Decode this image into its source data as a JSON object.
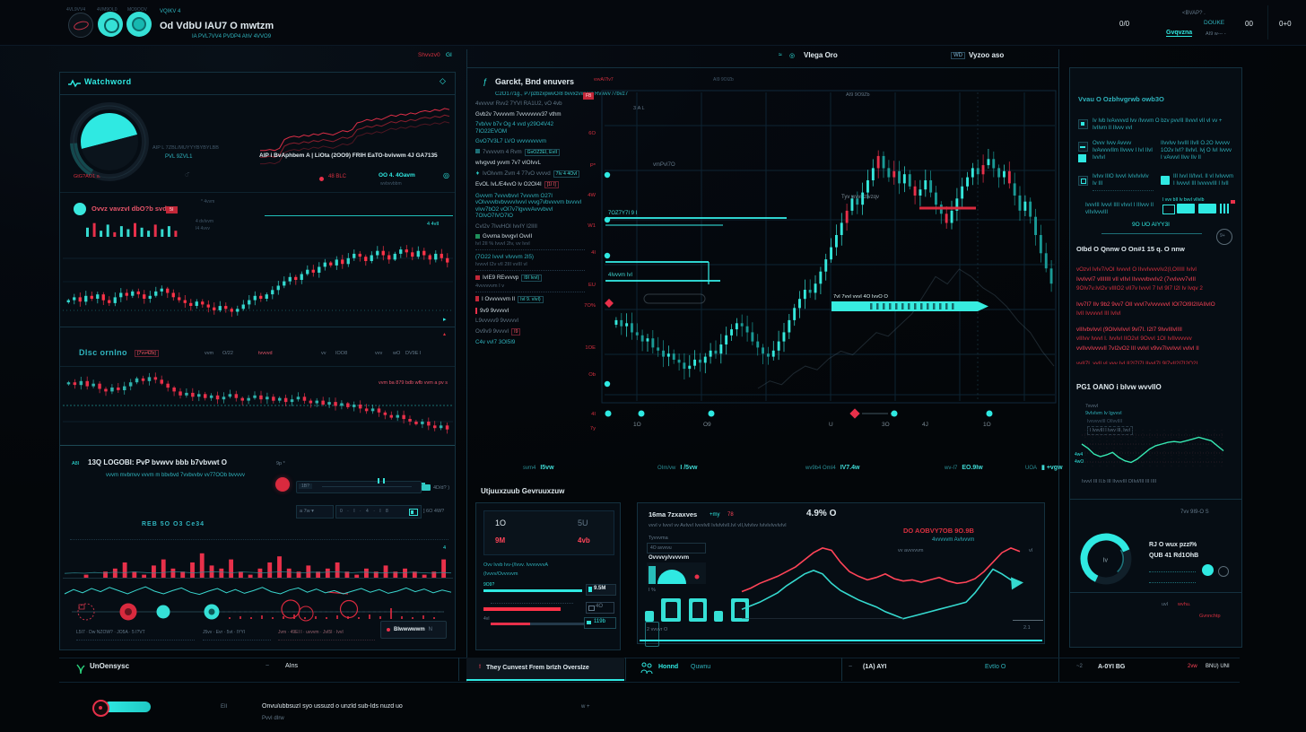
{
  "header": {
    "logo_caps": [
      "4VL9VV4",
      "4VM9OL0",
      "MO9OOV"
    ],
    "brand_small": "VQIKV 4",
    "brand_title": "Od VdbU IAU7 O mwtzm",
    "brand_sub": "IA PVL7VV4 PVDP4 AhV 4VVO9",
    "ratio": "0/0",
    "link1": "<BVAP? .",
    "link2": "DOUKE",
    "link3": "Gvqvzna",
    "link4": "AI9 w--- -",
    "num1": "00",
    "num2": "0+0"
  },
  "subbar": {
    "left_red": "Shvvzv0",
    "left_cyan": "GI",
    "center_title": "VIega Oro",
    "right_pre": "WD",
    "right_title": "Vyzoo aso"
  },
  "left": {
    "title": "Watchword",
    "diamond": "◇",
    "gauge_note1": "AIP L 7ZBL/MUYYYBYBYLBB",
    "gauge_note2": "PVL 9ZVL1",
    "rule_note": "4 4vII",
    "line_caption": "AIP i BvAphbem A | LiOta (2OO9) FRIH EaTO-bvivwm 4J GA7135",
    "tag_red": "GtG?AO1 a.",
    "stat_red": "48 BLC",
    "stat_teal": "OO 4. 4Oavm",
    "stat_sub": "wvbvvbbm",
    "c1_label": "Ovvz vavzvI dbO?b svd",
    "c1_badge": "5I",
    "c1_note1": "* 4vvm",
    "c1_note2": "4 dvIvvm",
    "c1_note3": "I4 4vvv",
    "s2_title": "DIsc ornIno",
    "s2_chip": "[7vv42b]",
    "s2_s1a": "vvm",
    "s2_s1b": "O/22",
    "s2_s2a": "tvvvvd",
    "s2_s3a": "vv",
    "s2_s3b": "IOO8",
    "s2_s4a": "vvv",
    "s2_s5a": "wO",
    "s2_s5b": "DV9E I",
    "s2_annot": "vvm ba 879 bdb wfb vvm a pv s",
    "s3_prefix": "A8I",
    "s3_title": "13Q LOGOBI: PvP bvwvv bbb b7vbvwt O",
    "s3_sub": "vvvm mvbmvv vvvm m bbvbvd 7vvbvvbv vv77OOb bvvvvv",
    "s3_mark": "9p *",
    "slider1_box": "1B?",
    "slider1_val": "4D/d? )",
    "slider2_box": "a 7w ▾",
    "slider2_scale": "0 · I · 4 · I 8",
    "slider2_val": "] 6O 4W?",
    "s3_center": "REB 5O O3 Ce34",
    "tl_g1": "L5I7 · Dw NZOW? · JO5A · 5 I?VT",
    "tl_g2": "J5vv · Evr · 5vt · IYYI",
    "tl_g3": "Jvm · 49EI I · uvvvm · JvI5I · IvvI",
    "tl_btn": "BIwwwwwm",
    "tl_btn_suffix": "N",
    "footer_brand": "UnOensysc",
    "footer_tilde": "~",
    "footer_right": "AIns"
  },
  "center": {
    "fmark": "ƒ",
    "title": "Garckt, Bnd enuvers",
    "subtitle": "C2O17/1g., P7pzbzxpwvO/8 bvvxzvwvwr Rvwvv /7bvz7",
    "subtitle2": "AI9 9O9Zb",
    "mini_note": "3IA L",
    "chip": "FB",
    "chart_note": "vvvA/7Iv7",
    "chart_note2": "AI9 9OIZb",
    "list": [
      {
        "t": "4vvvvvr Rvv2 7YVI RA1U2, vO 4vb",
        "c": "g"
      },
      {
        "t": "Gvb2v 7vvvvvm 7vvvvvvvv37 vthm",
        "c": "w"
      },
      {
        "t": "7vb/vv b7v Og 4 vvd y29O4V42 7IO22EVOM",
        "c": "t"
      },
      {
        "t": "GvO7V3L7 LVO vvvvvvvvvm",
        "c": "t"
      },
      {
        "t": "7vvvvvm 4 Rvm",
        "c": "g",
        "icon": "sq-teal",
        "chip": "GvOZ2EI, EvII"
      },
      {
        "t": "wIvgvvd yvvm 7v7 vIOIvvL",
        "c": "w"
      },
      {
        "t": "IvOIvvm Zvm 4 77vO vvvvd",
        "c": "g",
        "icon": "bolt",
        "chip": "7Iv 4 4OvI"
      },
      {
        "t": "EvOL IvL/E4vvO Iv O2OI4I",
        "c": "w",
        "chipred": "[1I I]"
      },
      {
        "t": "Gvvvm 7vvvvbvvI 7vvvvm O27I vOIvvvvbvbvvvvIvvvI vvvg7vbvvvvm bvvvvI vIvv7bO2 vOI7v7IgvvvAvvvbvvI 7OIvO7IVO7IO",
        "c": "t"
      },
      {
        "t": "CvI2v 7IvvHOI IvvIY I2IIII",
        "c": "g"
      },
      {
        "t": "Gvvma bvvgvI OvvII",
        "c": "w",
        "icon": "sq-green",
        "sub": "IvI 2II % IvvvI 2Iv, vv IvvI"
      },
      {
        "t": "(7O22 IvvvI vIvvvm 2I5)",
        "c": "t",
        "sub": "IvvvvI I2v vII 2III vvIII vI"
      },
      {
        "t": "IvIE9 REvvvvp",
        "c": "w",
        "icon": "sq-red",
        "sub": "4vvvvvvm I v",
        "chip": "I9I IvvI)"
      },
      {
        "t": "I Ovvvvvvm II",
        "c": "w",
        "icon": "flag-red",
        "chip": "IvI 9. vIvI)"
      },
      {
        "t": "9v9 9vvvvvI",
        "c": "w",
        "icon": "bar-red"
      },
      {
        "t": "L9vvvvv9 9vvvvvI",
        "c": "g"
      },
      {
        "t": "Ov9v9 9vvvvI",
        "c": "g",
        "chipred": "I9"
      },
      {
        "t": "C4v vvI7 3OI5I9",
        "c": "t"
      }
    ],
    "yaxis": [
      "6O",
      "P*",
      "4W",
      "W1",
      "4I",
      "EU",
      "7O%",
      "1OE",
      "Ob",
      "4I",
      "7y"
    ],
    "xaxis": [
      "1O",
      "O9",
      "U",
      "3O",
      "4J",
      "1O"
    ],
    "sup_label1": "7OZ7Y7I 9 I",
    "sup_label2": "4Ivvvm IvI",
    "annot1": "vmPvI7O",
    "annot2": "Tyv wvvr zIvzqv",
    "hl_label": "7vI 7vvI vvvI 4O IvvO O",
    "marker_label": "wv",
    "stats": [
      {
        "l": "svm4",
        "v": "I5vw"
      },
      {
        "l": "OIm/vw",
        "v": "I /5vw"
      },
      {
        "l": "wv9b4 OmI4",
        "v": "IV7.4w"
      },
      {
        "l": "wv-I7",
        "v": "EO.9Iw"
      },
      {
        "l": "UOA",
        "v": "+vgw"
      }
    ],
    "section2": "Utjuuxzuub Gevruuxzuw",
    "box": {
      "v1": "1O",
      "v2": "5U",
      "r1": "9M",
      "r2": "4vb",
      "t1": "Ovv Ivvb Ivv-(/Ivvv. IvvvvvvvA",
      "t2": "(Ivvvv/Ovvvvvm",
      "b1_label": "9O9?",
      "b1_val": "9.5M",
      "b2_val": "4O",
      "b3_label": "4vI",
      "b3_val": "119b"
    },
    "cta_mark": "!",
    "cta": "They Cunvest Frem brIzh OversIze",
    "dual": {
      "title": "16ma 7zxaxves",
      "tag": "+my",
      "tagred": "78",
      "value": "4.9% O",
      "sub": "vvvI v IvvvI vv AvIvvI IvvvIvII IvIvIvIvII.IvI vII,IvIvIvv IvIvIvIvvIvIvI",
      "l1": "Tyvvvma",
      "l2": "4O avvvvu",
      "l3": "Ovvvvy/vvvvvm",
      "pct": "I %",
      "pcount": "2 vvvvr O",
      "r1": "DO AOBVY7OB 9O.9B",
      "r2": "4vvvvvm AvIvvvm",
      "r3": "vv avvvvvm",
      "r4": "vI",
      "end": "2.1"
    }
  },
  "right": {
    "s1_title": "Vvau O Ozbhvgrwb owb3O",
    "i1": "Iv Ivb IvAvvvvd Ivv /Ivvvm O bzv pvv/II IIvvvI vII vI vv + IvIIvm II IIvvv vvI",
    "i2a": "Ovvv Ivvv Avvvv IvAvvvvIIm IIvvvv I IvI IIvI IvvIvI",
    "i2b": "IIvvIvv IvvIII IIvII O.2O Ivvvvv 1O2v IvI? IIvIvI. Ivj O IvI Ivvvv I vAvvvI IIvv IIv II",
    "i3a": "IvIvv IIIO IvvvI IvIvIvIvIv Iv III",
    "i3b": "III IvvI II/IvvI. II vI IvIvvvm I IvvvvI III IvvvvvIII I IvII",
    "i4": "IvvvIII IvvvI IIII vIvvI I IIIvvv II vIIvIvvvIII",
    "thumb_note": "I vvv bII Iv bvvI  vIIvIb",
    "center_link": "9O UO AIYY3I",
    "circle": "9+",
    "h2": "OIbd O Qnnw O On#1 15 q. O nnw",
    "red_lines": [
      "vOzvI IvIv7/vOI IvvvvI O IIvvIvvvvIv2(I,OIIIII IvIvI",
      "IvvIvvI7 vIIIIIII vII vIIvI IIvvvvbvvIv2 (7vvIvvv7vIII",
      "9OIv7v.IvI2v vIIIO2 vII7v IvvvI 7 IvI 9I7 I2I Iv Ivqv 2",
      "Ivv7I7 IIv 9b2 9vv7 OII vvvI7v/vvvvvvI IOI7OI9I2IIAIIvIO",
      "IvII IvvvvvI III IvIvI",
      "vIIIvbvIvvI (9OIvIvIvvI 9vI7I. I2I7 9IvvIIIvIIII",
      "vIIIvv IvvvI I. IvvIvI IIO2vI 9OvvI 1OI IvIIvvvvvv",
      "vvIIvvIvvvvII 7vI2vO2 III vvIvI v9vv7IvvIvvI vvIvI II",
      "vvII7L vvII vI vvv IvLII2I7I7I IIvvI7I 9I7vII2I7I2O2I",
      "vIIIvm vvvvvvvvvIIvvIIII v IIvI 9IvI7 I 2 IvI+II7I2O"
    ],
    "h3": "PG1 OANO i bIvw wvvIIO",
    "g_l1": "7vvvvI",
    "g_l2": "9vIvIvm Iv IgvvvI",
    "g_l3": "IvvvvvvIII OIIvvIIII",
    "g_l4": "I IvvvIII I Ivvv III, IvvI",
    "g_y1": "4w4",
    "g_y2": "4wO",
    "g_bottom": "IvvvI III II.b III IIvvvIII OIIvI/III III IIII",
    "pill": "7vv 9I9-O S",
    "donut_center": "Iv",
    "d1": "RJ O wux pzzI%",
    "d2": "QUB 41 Rd1OhB",
    "mini1": "uvI",
    "mini2": "wvhu.",
    "mini3": "Gvnnchtp",
    "f1": "~2",
    "f2": "A-0YI BG",
    "f3": "2vw",
    "f4": "BNU) UNI"
  },
  "footer": {
    "honnd": "Honnd",
    "quwnu": "Quwnu",
    "tilde": "~",
    "aYI": "(1A) AYI",
    "evtio": "EvtIo O"
  },
  "bottom": {
    "eii": "EII",
    "line1": "Onvu/ubbsuzI syo ussuzd o unzId sub-Ids nuzd uo",
    "line2": "PvvI dIrw",
    "plus": "w +"
  },
  "gauges": {
    "left": {
      "percent": 58
    },
    "right": {
      "percent": 62
    }
  },
  "charts": {
    "spark": [
      20,
      20,
      21,
      20,
      22,
      30,
      32,
      33,
      32,
      34,
      33,
      35,
      34,
      36,
      35,
      34,
      36,
      38,
      37,
      39,
      45,
      46,
      48,
      47,
      49,
      48,
      50,
      52,
      51,
      53,
      52,
      54,
      53,
      55,
      56,
      55,
      57,
      56,
      58,
      57
    ],
    "mini": [
      6,
      9,
      4,
      8,
      3,
      7,
      5,
      9,
      6,
      4,
      8,
      5,
      7,
      4
    ],
    "left1": [
      44,
      46,
      43,
      47,
      45,
      48,
      44,
      42,
      46,
      49,
      47,
      50,
      48,
      45,
      47,
      50,
      52,
      49,
      46,
      44,
      42,
      40,
      43,
      41,
      39,
      37,
      40,
      38,
      36,
      38,
      41,
      44,
      47,
      45,
      48,
      51,
      54,
      57,
      60,
      58,
      62,
      65,
      63,
      67,
      70,
      68,
      72,
      69,
      73,
      76,
      74,
      71,
      75,
      78,
      75,
      72,
      76,
      79,
      77,
      74,
      78,
      75,
      72,
      76,
      73,
      70
    ],
    "left2": [
      55,
      53,
      56,
      52,
      54,
      50,
      48,
      51,
      49,
      52,
      55,
      58,
      56,
      59,
      57,
      54,
      51,
      48,
      45,
      47,
      44,
      46,
      43,
      45,
      42,
      44,
      46,
      43,
      41,
      43,
      45,
      42,
      44,
      41,
      43,
      40,
      42,
      44,
      41,
      39,
      41,
      38,
      40,
      37,
      39,
      36,
      38,
      35,
      33,
      35,
      32,
      30,
      28,
      30,
      27,
      25,
      23,
      25,
      22,
      20,
      22,
      19
    ],
    "main": [
      38,
      36,
      37,
      34,
      33,
      31,
      32,
      29,
      28,
      26,
      27,
      25,
      24,
      22,
      23,
      25,
      24,
      26,
      28,
      27,
      30,
      33,
      35,
      37,
      36,
      34,
      31,
      29,
      27,
      26,
      28,
      31,
      34,
      38,
      42,
      45,
      48,
      47,
      50,
      54,
      58,
      62,
      66,
      70,
      74,
      78,
      76,
      80,
      84,
      88,
      92,
      88,
      85,
      87,
      83,
      86,
      82,
      79,
      81,
      84,
      80,
      76,
      73,
      70,
      74,
      78,
      82,
      85,
      88,
      86,
      89,
      91,
      88,
      85,
      87,
      83,
      79,
      74,
      77,
      72,
      66,
      60,
      55,
      50
    ],
    "main_red": [
      44,
      50,
      53,
      57,
      63,
      70,
      75
    ],
    "ghost": [
      30,
      32,
      31,
      34,
      36,
      35,
      38,
      40,
      39,
      42,
      45,
      44,
      47,
      50,
      55,
      60,
      58,
      62,
      60,
      57,
      55,
      52,
      48,
      45,
      40,
      36
    ],
    "red_bars": [
      0,
      0,
      1,
      0,
      2,
      3,
      5,
      2,
      1,
      4,
      6,
      3,
      2,
      5,
      8,
      4,
      3,
      6,
      2,
      1,
      3,
      5,
      7,
      3,
      2,
      4,
      2,
      3,
      5,
      2,
      1,
      3,
      2,
      4,
      2,
      3,
      2,
      1,
      2,
      6
    ],
    "teal_line": [
      3,
      3.4,
      3.1,
      3.6,
      3.2,
      3.8,
      3.5,
      4,
      3.6,
      3.2,
      3.7,
      4.1,
      3.8,
      3.4,
      3.9,
      4.2,
      3.8,
      3.5,
      4,
      3.7,
      3.3,
      3.8,
      4.1,
      3.7,
      3.4,
      3.9,
      3.6,
      4.1,
      3.8,
      3.5,
      3.9,
      3.6,
      3.3,
      3.7,
      3.4,
      3.8,
      3.5,
      3.2,
      3.6,
      3.3
    ],
    "wave": [
      5,
      5.8,
      5.2,
      6,
      5.4,
      6.2,
      5.6,
      5,
      5.7,
      6.3,
      5.5,
      5,
      5.6,
      6.1,
      5.3,
      4.9,
      5.5,
      6,
      5.2,
      5.8,
      5.1,
      5.6,
      6.2,
      5.4,
      5,
      5.7,
      6.1,
      5.3,
      5.9,
      5.2,
      5.6,
      5,
      5.5,
      6,
      5.3,
      5.8,
      5.1,
      5.5,
      6.1,
      5.4,
      5.9,
      5.2,
      5.7,
      5.3
    ],
    "ticks": [
      2,
      3,
      2,
      4,
      2,
      3,
      5,
      2,
      3,
      2,
      4,
      3,
      2,
      5,
      3,
      12,
      3,
      2,
      4,
      2
    ],
    "dual_red": [
      45,
      48,
      52,
      55,
      58,
      62,
      66,
      72,
      78,
      82,
      80,
      70,
      62,
      58,
      55,
      57,
      60,
      56,
      54,
      55,
      53,
      55,
      57,
      54,
      52,
      53,
      56,
      62,
      70,
      78,
      82,
      79
    ],
    "dual_teal": [
      30,
      33,
      36,
      40,
      44,
      50,
      55,
      60,
      63,
      60,
      52,
      46,
      42,
      38,
      35,
      32,
      28,
      25,
      22,
      24,
      26,
      28,
      30,
      32,
      34,
      36,
      44,
      54,
      64,
      60,
      55,
      52
    ],
    "green": [
      60,
      55,
      48,
      45,
      47,
      50,
      44,
      40,
      38,
      42,
      48,
      54,
      58,
      60,
      62,
      63,
      62,
      64,
      66,
      68,
      66,
      64,
      58,
      52
    ]
  }
}
